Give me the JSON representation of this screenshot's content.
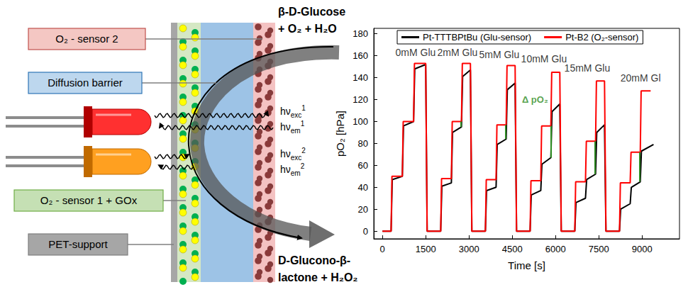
{
  "diagram": {
    "layers": [
      {
        "label": "O₂ - sensor 2"
      },
      {
        "label": "Diffusion barrier"
      },
      {
        "label": "O₂ - sensor 1 + GOx"
      },
      {
        "label": "PET-support"
      }
    ],
    "photon_labels": [
      {
        "base": "hν",
        "sub": "exc",
        "sup": "1"
      },
      {
        "base": "hν",
        "sub": "em",
        "sup": "1"
      },
      {
        "base": "hν",
        "sub": "exc",
        "sup": "2"
      },
      {
        "base": "hν",
        "sub": "em",
        "sup": "2"
      }
    ],
    "reactants": [
      "β-D-Glucose",
      "+ O₂ + H₂O"
    ],
    "products": [
      "D-Glucono-β-",
      "lactone + H₂O₂"
    ]
  },
  "chart_data": {
    "type": "line",
    "x_label": "Time [s]",
    "y_label": "pO₂ [hPa]",
    "xlim": [
      -300,
      10300
    ],
    "xticks": [
      0,
      1500,
      3000,
      4500,
      6000,
      7500,
      9000
    ],
    "ylim": [
      -7,
      185
    ],
    "yticks": [
      0,
      20,
      40,
      60,
      80,
      100,
      120,
      140,
      160,
      180
    ],
    "grid": false,
    "legend": "top",
    "series": [
      {
        "name": "Pt-TTTBPtBu (Glu-sensor)",
        "color": "#000000",
        "x": [
          0,
          300,
          340,
          690,
          730,
          1080,
          1120,
          1500,
          1550,
          2020,
          2060,
          2390,
          2430,
          2740,
          2780,
          3050,
          3100,
          3570,
          3610,
          3940,
          3980,
          4290,
          4330,
          4600,
          4650,
          5120,
          5160,
          5490,
          5530,
          5840,
          5880,
          6150,
          6200,
          6670,
          6710,
          7040,
          7080,
          7390,
          7430,
          7700,
          7750,
          8220,
          8260,
          8590,
          8630,
          8940,
          8980,
          9400
        ],
        "values": [
          0,
          0,
          47,
          50,
          96,
          100,
          148,
          152,
          0,
          0,
          41,
          44,
          90,
          95,
          141,
          147,
          0,
          0,
          37,
          40,
          79,
          84,
          129,
          135,
          0,
          0,
          33,
          37,
          61,
          67,
          109,
          116,
          0,
          0,
          26,
          30,
          47,
          52,
          90,
          97,
          0,
          0,
          20,
          25,
          40,
          45,
          73,
          79
        ]
      },
      {
        "name": "Pt-B2 (O₂-sensor)",
        "color": "#ff0000",
        "x": [
          0,
          300,
          330,
          690,
          720,
          1080,
          1110,
          1500,
          1550,
          2020,
          2050,
          2390,
          2420,
          2740,
          2770,
          3050,
          3100,
          3570,
          3600,
          3940,
          3970,
          4290,
          4320,
          4600,
          4650,
          5120,
          5150,
          5490,
          5520,
          5840,
          5870,
          6150,
          6200,
          6670,
          6700,
          7040,
          7070,
          7390,
          7420,
          7700,
          7750,
          8220,
          8250,
          8590,
          8620,
          8940,
          8970,
          9300
        ],
        "values": [
          0,
          0,
          50,
          50,
          100,
          100,
          153,
          153,
          0,
          0,
          48,
          48,
          100,
          100,
          153,
          153,
          0,
          0,
          47,
          47,
          97,
          97,
          151,
          151,
          0,
          0,
          46,
          46,
          96,
          96,
          145,
          145,
          0,
          0,
          45,
          45,
          82,
          82,
          137,
          137,
          0,
          0,
          44,
          44,
          72,
          72,
          128,
          128
        ]
      }
    ],
    "delta_pO2": {
      "color": "#2e8b22",
      "x": [
        2720,
        4270,
        5835,
        7370,
        8920
      ],
      "from": [
        95,
        84,
        67,
        52,
        45
      ],
      "to": [
        100,
        97,
        96,
        82,
        72
      ]
    },
    "annotations": [
      {
        "text": "0mM Glu",
        "x": 1150,
        "y": 163
      },
      {
        "text": "2mM Glu",
        "x": 2600,
        "y": 163
      },
      {
        "text": "5mM Glu",
        "x": 4050,
        "y": 161
      },
      {
        "text": "10mM Glu",
        "x": 5600,
        "y": 157
      },
      {
        "text": "15mM Glu",
        "x": 7100,
        "y": 149
      },
      {
        "text": "20mM Gl",
        "x": 8950,
        "y": 140
      },
      {
        "text": "Δ pO₂",
        "x": 5290,
        "y": 120,
        "color": "#2e8b22"
      }
    ]
  }
}
